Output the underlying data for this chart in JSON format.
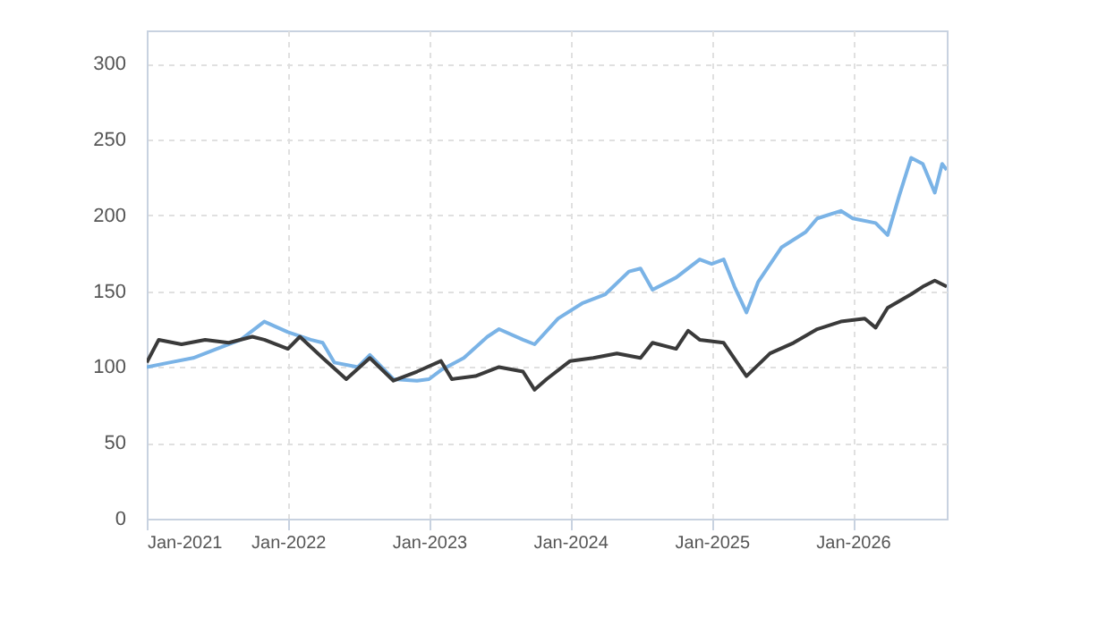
{
  "chart_data": {
    "type": "line",
    "xlim": [
      "2021-01",
      "2026-09"
    ],
    "ylim": [
      0,
      322
    ],
    "xticks": [
      {
        "value": "2021-01",
        "label": "Jan-2021"
      },
      {
        "value": "2022-01",
        "label": "Jan-2022"
      },
      {
        "value": "2023-01",
        "label": "Jan-2023"
      },
      {
        "value": "2024-01",
        "label": "Jan-2024"
      },
      {
        "value": "2025-01",
        "label": "Jan-2025"
      },
      {
        "value": "2026-01",
        "label": "Jan-2026"
      }
    ],
    "yticks": [
      0,
      50,
      100,
      150,
      200,
      250,
      300
    ],
    "grid": true,
    "line_style": "solid",
    "series": [
      {
        "color": "#7ab3e6",
        "x": [
          "2021-01",
          "2021-03",
          "2021-05",
          "2021-07",
          "2021-09",
          "2021-11",
          "2022-01",
          "2022-03",
          "2022-04",
          "2022-05",
          "2022-07",
          "2022-08",
          "2022-10",
          "2022-12",
          "2023-01",
          "2023-02",
          "2023-04",
          "2023-06",
          "2023-07",
          "2023-09",
          "2023-10",
          "2023-12",
          "2024-02",
          "2024-04",
          "2024-06",
          "2024-07",
          "2024-08",
          "2024-10",
          "2024-12",
          "2025-01",
          "2025-02",
          "2025-03",
          "2025-04",
          "2025-05",
          "2025-07",
          "2025-09",
          "2025-10",
          "2025-12",
          "2026-01",
          "2026-03",
          "2026-04",
          "2026-05",
          "2026-06",
          "2026-07",
          "2026-08",
          "2026-08-20",
          "2026-09"
        ],
        "values": [
          100,
          103,
          106,
          112,
          118,
          130,
          123,
          118,
          116,
          103,
          100,
          108,
          92,
          91,
          92,
          98,
          106,
          120,
          125,
          118,
          115,
          132,
          142,
          148,
          163,
          165,
          151,
          159,
          171,
          168,
          171,
          153,
          136,
          156,
          179,
          189,
          198,
          203,
          198,
          195,
          187,
          213,
          238,
          234,
          215,
          234,
          230
        ]
      },
      {
        "color": "#3a3a3a",
        "x": [
          "2021-01",
          "2021-02",
          "2021-04",
          "2021-06",
          "2021-08",
          "2021-10",
          "2021-11",
          "2022-01",
          "2022-02",
          "2022-04",
          "2022-06",
          "2022-08",
          "2022-10",
          "2022-12",
          "2023-02",
          "2023-03",
          "2023-05",
          "2023-07",
          "2023-09",
          "2023-10",
          "2023-11",
          "2024-01",
          "2024-03",
          "2024-05",
          "2024-07",
          "2024-08",
          "2024-10",
          "2024-11",
          "2024-12",
          "2025-02",
          "2025-04",
          "2025-06",
          "2025-08",
          "2025-10",
          "2025-12",
          "2026-02",
          "2026-03",
          "2026-04",
          "2026-06",
          "2026-07",
          "2026-08",
          "2026-09"
        ],
        "values": [
          103,
          118,
          115,
          118,
          116,
          120,
          118,
          112,
          120,
          106,
          92,
          106,
          91,
          97,
          104,
          92,
          94,
          100,
          97,
          85,
          92,
          104,
          106,
          109,
          106,
          116,
          112,
          124,
          118,
          116,
          94,
          109,
          116,
          125,
          130,
          132,
          126,
          139,
          148,
          153,
          157,
          153
        ]
      }
    ]
  }
}
